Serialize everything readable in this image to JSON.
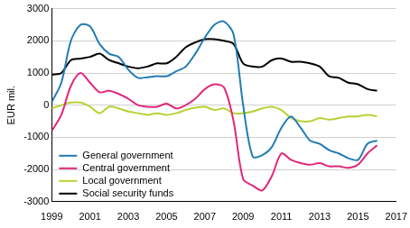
{
  "chart_data": {
    "type": "line",
    "y_label": "EUR mil.",
    "x": [
      1999,
      1999.5,
      2000,
      2000.5,
      2001,
      2001.5,
      2002,
      2002.5,
      2003,
      2003.5,
      2004,
      2004.5,
      2005,
      2005.5,
      2006,
      2006.5,
      2007,
      2007.5,
      2008,
      2008.5,
      2009,
      2009.5,
      2010,
      2010.5,
      2011,
      2011.5,
      2012,
      2012.5,
      2013,
      2013.5,
      2014,
      2014.5,
      2015,
      2015.5,
      2016
    ],
    "series": [
      {
        "name": "General government",
        "color": "#217cb3",
        "values": [
          100,
          700,
          2000,
          2500,
          2450,
          1900,
          1600,
          1500,
          1100,
          850,
          870,
          900,
          900,
          1050,
          1200,
          1600,
          2100,
          2500,
          2600,
          2200,
          0,
          -1600,
          -1550,
          -1300,
          -700,
          -350,
          -700,
          -1100,
          -1200,
          -1400,
          -1500,
          -1650,
          -1700,
          -1200,
          -1100
        ]
      },
      {
        "name": "Central government",
        "color": "#e0287a",
        "values": [
          -800,
          -300,
          600,
          1000,
          700,
          400,
          450,
          350,
          200,
          0,
          -50,
          -50,
          50,
          -100,
          0,
          200,
          500,
          650,
          550,
          -500,
          -2300,
          -2500,
          -2650,
          -2200,
          -1500,
          -1700,
          -1800,
          -1850,
          -1800,
          -1900,
          -1900,
          -1950,
          -1850,
          -1500,
          -1250
        ]
      },
      {
        "name": "Local government",
        "color": "#b5d334",
        "values": [
          -100,
          0,
          80,
          80,
          -50,
          -250,
          -50,
          -100,
          -200,
          -250,
          -300,
          -250,
          -300,
          -250,
          -150,
          -80,
          -50,
          -150,
          -100,
          -250,
          -250,
          -200,
          -100,
          -50,
          -150,
          -400,
          -500,
          -500,
          -400,
          -450,
          -400,
          -350,
          -350,
          -300,
          -350
        ]
      },
      {
        "name": "Social security funds",
        "color": "#000000",
        "values": [
          950,
          1000,
          1400,
          1450,
          1500,
          1600,
          1400,
          1300,
          1200,
          1150,
          1200,
          1300,
          1300,
          1500,
          1800,
          1950,
          2050,
          2050,
          2000,
          1900,
          1300,
          1200,
          1200,
          1400,
          1450,
          1350,
          1350,
          1300,
          1200,
          900,
          850,
          700,
          650,
          500,
          450
        ]
      }
    ],
    "xlim": [
      1999,
      2017
    ],
    "xticks": [
      1999,
      2001,
      2003,
      2005,
      2007,
      2009,
      2011,
      2013,
      2015,
      2017
    ],
    "ylim": [
      -3000,
      3000
    ],
    "yticks": [
      -3000,
      -2000,
      -1000,
      0,
      1000,
      2000,
      3000
    ],
    "grid": true,
    "legend": "lower left"
  }
}
